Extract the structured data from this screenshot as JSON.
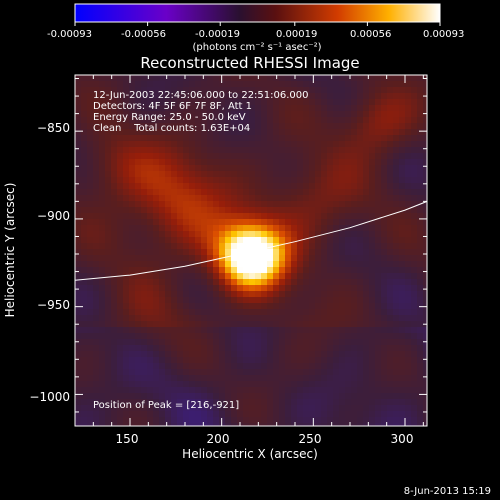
{
  "colorbar": {
    "tick_labels": [
      "-0.00093",
      "-0.00056",
      "-0.00019",
      "0.00019",
      "0.00056",
      "0.00093"
    ],
    "unit_label": "(photons cm⁻² s⁻¹ asec⁻²)"
  },
  "chart_data": {
    "type": "heatmap",
    "title": "Reconstructed RHESSI Image",
    "xlabel": "Heliocentric X (arcsec)",
    "ylabel": "Heliocentric Y (arcsec)",
    "xlim": [
      120,
      312
    ],
    "ylim": [
      -1018,
      -818
    ],
    "x_ticks": [
      150,
      200,
      250,
      300
    ],
    "y_ticks": [
      -850,
      -900,
      -950,
      -1000
    ],
    "x_tick_labels": [
      "150",
      "200",
      "250",
      "300"
    ],
    "y_tick_labels": [
      "−850",
      "−900",
      "−950",
      "−1000"
    ],
    "color_range": [
      -0.00093,
      0.00093
    ],
    "peak": {
      "x": 216,
      "y": -921
    },
    "limb_curve": {
      "x": [
        120,
        150,
        180,
        210,
        240,
        270,
        300,
        312
      ],
      "y": [
        -935,
        -932,
        -927,
        -920,
        -913,
        -905,
        -895,
        -890
      ]
    },
    "annotations": [
      "12-Jun-2003 22:45:06.000 to 22:51:06.000",
      "Detectors: 4F 5F 6F 7F 8F, Att 1",
      "Energy Range: 25.0 - 50.0 keV",
      "Clean    Total counts: 1.63E+04"
    ],
    "peak_label": "Position of Peak = [216,-921]",
    "colors": {
      "scale": [
        "#0000ff",
        "#4b00b4",
        "#3c1e78",
        "#3c1e3c",
        "#5a1e1e",
        "#961e0a",
        "#dc5000",
        "#ffc800",
        "#ffffff"
      ]
    }
  },
  "footer": {
    "date": "8-Jun-2013 15:19"
  }
}
